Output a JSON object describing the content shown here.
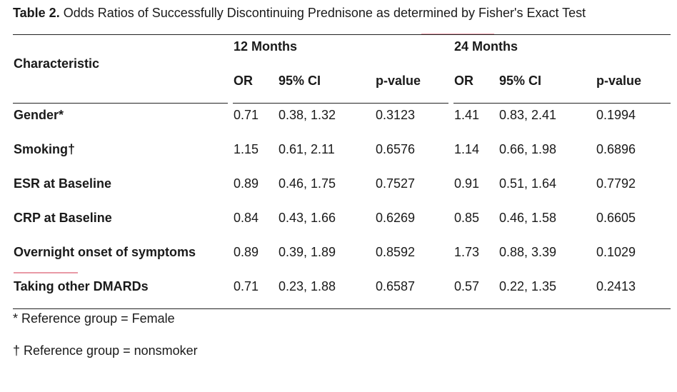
{
  "caption": {
    "label": "Table 2.",
    "text": " Odds Ratios of Successfully Discontinuing Prednisone as determined by Fisher's Exact Test"
  },
  "header": {
    "characteristic": "Characteristic",
    "group1": "12 Months",
    "group2": "24 Months",
    "cols": [
      "OR",
      "95% CI",
      "p-value",
      "OR",
      "95% CI",
      "p-value"
    ]
  },
  "rows": [
    {
      "label": "Gender*",
      "values": [
        "0.71",
        "0.38, 1.32",
        "0.3123",
        "1.41",
        "0.83, 2.41",
        "0.1994"
      ]
    },
    {
      "label": "Smoking†",
      "values": [
        "1.15",
        "0.61, 2.11",
        "0.6576",
        "1.14",
        "0.66, 1.98",
        "0.6896"
      ]
    },
    {
      "label": "ESR at Baseline",
      "values": [
        "0.89",
        "0.46, 1.75",
        "0.7527",
        "0.91",
        "0.51, 1.64",
        "0.7792"
      ]
    },
    {
      "label": "CRP at Baseline",
      "values": [
        "0.84",
        "0.43, 1.66",
        "0.6269",
        "0.85",
        "0.46, 1.58",
        "0.6605"
      ]
    },
    {
      "label": "Overnight onset of symptoms",
      "values": [
        "0.89",
        "0.39, 1.89",
        "0.8592",
        "1.73",
        "0.88, 3.39",
        "0.1029"
      ]
    },
    {
      "label": "Taking other DMARDs",
      "values": [
        "0.71",
        "0.23, 1.88",
        "0.6587",
        "0.57",
        "0.22, 1.35",
        "0.2413"
      ]
    }
  ],
  "footnotes": [
    "* Reference group = Female",
    "† Reference group = nonsmoker"
  ]
}
